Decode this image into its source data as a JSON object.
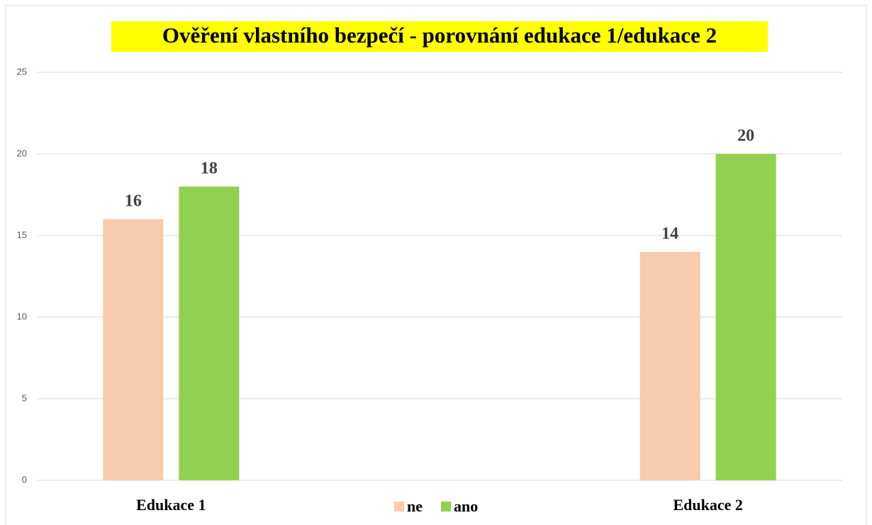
{
  "chart_data": {
    "type": "bar",
    "title": "Ověření vlastního bezpečí - porovnání edukace 1/edukace 2",
    "categories": [
      "Edukace 1",
      null,
      "Edukace 2"
    ],
    "series": [
      {
        "name": "ne",
        "color": "#f8cbad",
        "values": [
          16,
          null,
          14
        ]
      },
      {
        "name": "ano",
        "color": "#92d050",
        "values": [
          18,
          null,
          20
        ]
      }
    ],
    "ylim": [
      0,
      25
    ],
    "yticks": [
      0,
      5,
      10,
      15,
      20,
      25
    ],
    "grid": true,
    "legend": "bottom"
  }
}
